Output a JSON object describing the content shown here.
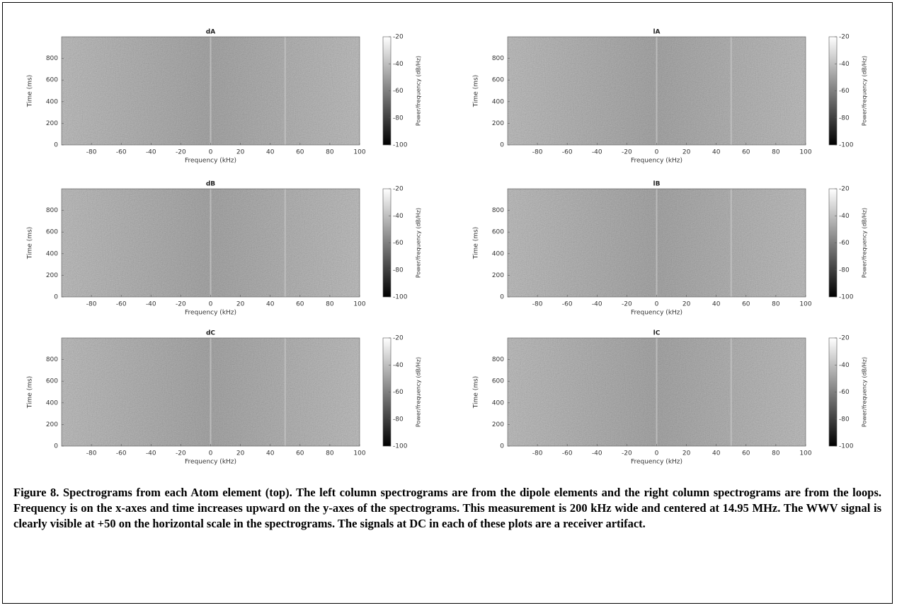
{
  "chart_data": [
    {
      "type": "spectrogram",
      "title": "dA",
      "x_label": "Frequency (kHz)",
      "y_label": "Time (ms)",
      "colorbar_label": "Power/frequency (dB/Hz)",
      "xlim": [
        -100,
        100
      ],
      "xticks": [
        -80,
        -60,
        -40,
        -20,
        0,
        20,
        40,
        60,
        80,
        100
      ],
      "ylim": [
        0,
        1000
      ],
      "yticks": [
        0,
        200,
        400,
        600,
        800
      ],
      "clim": [
        -100,
        -20
      ],
      "cticks": [
        -20,
        -40,
        -60,
        -80,
        -100
      ],
      "signal_x": [
        0,
        50
      ]
    },
    {
      "type": "spectrogram",
      "title": "lA",
      "x_label": "Frequency (kHz)",
      "y_label": "Time (ms)",
      "colorbar_label": "Power/frequency (dB/Hz)",
      "xlim": [
        -100,
        100
      ],
      "xticks": [
        -80,
        -60,
        -40,
        -20,
        0,
        20,
        40,
        60,
        80,
        100
      ],
      "ylim": [
        0,
        1000
      ],
      "yticks": [
        0,
        200,
        400,
        600,
        800
      ],
      "clim": [
        -100,
        -20
      ],
      "cticks": [
        -20,
        -40,
        -60,
        -80,
        -100
      ],
      "signal_x": [
        0,
        50
      ]
    },
    {
      "type": "spectrogram",
      "title": "dB",
      "x_label": "Frequency (kHz)",
      "y_label": "Time (ms)",
      "colorbar_label": "Power/frequency (dB/Hz)",
      "xlim": [
        -100,
        100
      ],
      "xticks": [
        -80,
        -60,
        -40,
        -20,
        0,
        20,
        40,
        60,
        80,
        100
      ],
      "ylim": [
        0,
        1000
      ],
      "yticks": [
        0,
        200,
        400,
        600,
        800
      ],
      "clim": [
        -100,
        -20
      ],
      "cticks": [
        -20,
        -40,
        -60,
        -80,
        -100
      ],
      "signal_x": [
        0,
        50
      ]
    },
    {
      "type": "spectrogram",
      "title": "lB",
      "x_label": "Frequency (kHz)",
      "y_label": "Time (ms)",
      "colorbar_label": "Power/frequency (dB/Hz)",
      "xlim": [
        -100,
        100
      ],
      "xticks": [
        -80,
        -60,
        -40,
        -20,
        0,
        20,
        40,
        60,
        80,
        100
      ],
      "ylim": [
        0,
        1000
      ],
      "yticks": [
        0,
        200,
        400,
        600,
        800
      ],
      "clim": [
        -100,
        -20
      ],
      "cticks": [
        -20,
        -40,
        -60,
        -80,
        -100
      ],
      "signal_x": [
        0,
        50
      ]
    },
    {
      "type": "spectrogram",
      "title": "dC",
      "x_label": "Frequency (kHz)",
      "y_label": "Time (ms)",
      "colorbar_label": "Power/frequency (dB/Hz)",
      "xlim": [
        -100,
        100
      ],
      "xticks": [
        -80,
        -60,
        -40,
        -20,
        0,
        20,
        40,
        60,
        80,
        100
      ],
      "ylim": [
        0,
        1000
      ],
      "yticks": [
        0,
        200,
        400,
        600,
        800
      ],
      "clim": [
        -100,
        -20
      ],
      "cticks": [
        -20,
        -40,
        -60,
        -80,
        -100
      ],
      "signal_x": [
        0,
        50
      ]
    },
    {
      "type": "spectrogram",
      "title": "lC",
      "x_label": "Frequency (kHz)",
      "y_label": "Time (ms)",
      "colorbar_label": "Power/frequency (dB/Hz)",
      "xlim": [
        -100,
        100
      ],
      "xticks": [
        -80,
        -60,
        -40,
        -20,
        0,
        20,
        40,
        60,
        80,
        100
      ],
      "ylim": [
        0,
        1000
      ],
      "yticks": [
        0,
        200,
        400,
        600,
        800
      ],
      "clim": [
        -100,
        -20
      ],
      "cticks": [
        -20,
        -40,
        -60,
        -80,
        -100
      ],
      "signal_x": [
        0,
        50
      ]
    }
  ],
  "caption": "Figure 8. Spectrograms from each Atom element (top).  The left column spectrograms are from the dipole elements and the right column spectrograms are from the loops.  Frequency is on the x-axes and time increases upward on the y-axes of the spectrograms.  This measurement is 200 kHz wide and centered at 14.95 MHz.  The WWV signal is clearly visible at +50 on the horizontal scale in the spectrograms.  The signals at DC in each of these plots are a receiver artifact."
}
